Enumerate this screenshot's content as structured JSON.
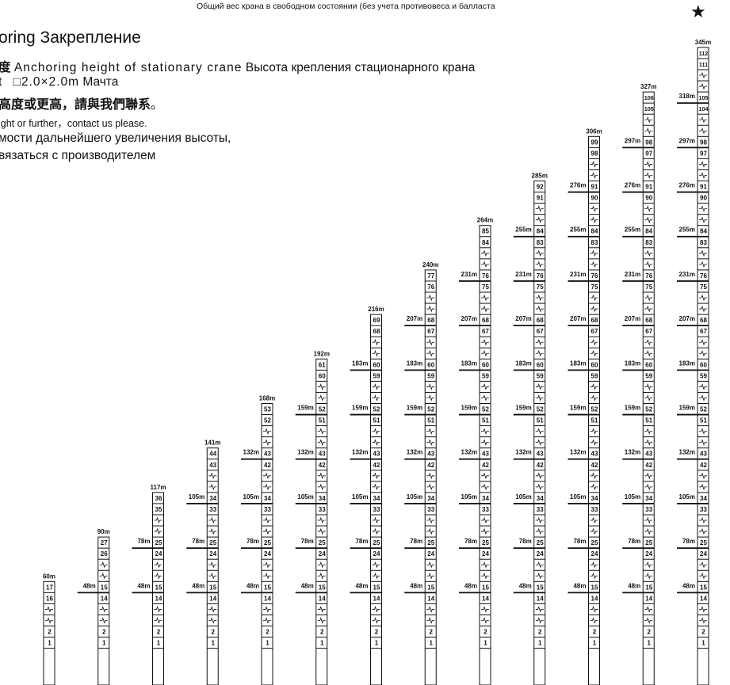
{
  "header": {
    "top_note": "Общий вес крана в свободном состоянии (без учета противовеса и балласта",
    "title_suffix": "oring",
    "title_ru": "Закрепление",
    "anchoring_zh_fragment": "度",
    "anchoring_en": "Anchoring height of stationary crane",
    "anchoring_ru": "Высота крепления стационарного крана",
    "mast_prefix": "t",
    "mast_code": "□2.0×2.0m",
    "mast_ru": "Мачта",
    "contact_zh": "高度或更高，請與我們聯系",
    "contact_zh_end": "。",
    "contact_en": "ight or further，contact us please.",
    "contact_ru_line1": "мости дальнейшего увеличения высоты,",
    "contact_ru_line2": "вязаться с производителем",
    "star_icon": "★"
  },
  "chart_data": {
    "type": "table",
    "title": "",
    "columns": [
      {
        "top_label": "60m",
        "sections": [
          "17",
          "16",
          "",
          "",
          "2",
          "1"
        ],
        "anchors": []
      },
      {
        "top_label": "90m",
        "sections": [
          "27",
          "26",
          "",
          "",
          "15",
          "14",
          "",
          "",
          "2",
          "1"
        ],
        "anchors": [
          {
            "label": "48m",
            "below": "15"
          }
        ]
      },
      {
        "top_label": "117m",
        "sections": [
          "36",
          "35",
          "",
          "",
          "25",
          "24",
          "",
          "",
          "15",
          "14",
          "",
          "",
          "2",
          "1"
        ],
        "anchors": [
          {
            "label": "78m",
            "below": "25"
          },
          {
            "label": "48m",
            "below": "15"
          }
        ]
      },
      {
        "top_label": "141m",
        "sections": [
          "44",
          "43",
          "",
          "",
          "34",
          "33",
          "",
          "",
          "25",
          "24",
          "",
          "",
          "15",
          "14",
          "",
          "",
          "2",
          "1"
        ],
        "anchors": [
          {
            "label": "105m",
            "below": "34"
          },
          {
            "label": "78m",
            "below": "25"
          },
          {
            "label": "48m",
            "below": "15"
          }
        ]
      },
      {
        "top_label": "168m",
        "sections": [
          "53",
          "52",
          "",
          "",
          "43",
          "42",
          "",
          "",
          "34",
          "33",
          "",
          "",
          "25",
          "24",
          "",
          "",
          "15",
          "14",
          "",
          "",
          "2",
          "1"
        ],
        "anchors": [
          {
            "label": "132m",
            "below": "43"
          },
          {
            "label": "105m",
            "below": "34"
          },
          {
            "label": "78m",
            "below": "25"
          },
          {
            "label": "48m",
            "below": "15"
          }
        ]
      },
      {
        "top_label": "192m",
        "sections": [
          "61",
          "60",
          "",
          "",
          "52",
          "51",
          "",
          "",
          "43",
          "42",
          "",
          "",
          "34",
          "33",
          "",
          "",
          "25",
          "24",
          "",
          "",
          "15",
          "14",
          "",
          "",
          "2",
          "1"
        ],
        "anchors": [
          {
            "label": "159m",
            "below": "52"
          },
          {
            "label": "132m",
            "below": "43"
          },
          {
            "label": "105m",
            "below": "34"
          },
          {
            "label": "78m",
            "below": "25"
          },
          {
            "label": "48m",
            "below": "15"
          }
        ]
      },
      {
        "top_label": "216m",
        "sections": [
          "69",
          "68",
          "",
          "",
          "60",
          "59",
          "",
          "",
          "52",
          "51",
          "",
          "",
          "43",
          "42",
          "",
          "",
          "34",
          "33",
          "",
          "",
          "25",
          "24",
          "",
          "",
          "15",
          "14",
          "",
          "",
          "2",
          "1"
        ],
        "anchors": [
          {
            "label": "183m",
            "below": "60"
          },
          {
            "label": "159m",
            "below": "52"
          },
          {
            "label": "132m",
            "below": "43"
          },
          {
            "label": "105m",
            "below": "34"
          },
          {
            "label": "78m",
            "below": "25"
          },
          {
            "label": "48m",
            "below": "15"
          }
        ]
      },
      {
        "top_label": "240m",
        "sections": [
          "77",
          "76",
          "",
          "",
          "68",
          "67",
          "",
          "",
          "60",
          "59",
          "",
          "",
          "52",
          "51",
          "",
          "",
          "43",
          "42",
          "",
          "",
          "34",
          "33",
          "",
          "",
          "25",
          "24",
          "",
          "",
          "15",
          "14",
          "",
          "",
          "2",
          "1"
        ],
        "anchors": [
          {
            "label": "207m",
            "below": "68"
          },
          {
            "label": "183m",
            "below": "60"
          },
          {
            "label": "159m",
            "below": "52"
          },
          {
            "label": "132m",
            "below": "43"
          },
          {
            "label": "105m",
            "below": "34"
          },
          {
            "label": "78m",
            "below": "25"
          },
          {
            "label": "48m",
            "below": "15"
          }
        ]
      },
      {
        "top_label": "264m",
        "sections": [
          "85",
          "84",
          "",
          "",
          "76",
          "75",
          "",
          "",
          "68",
          "67",
          "",
          "",
          "60",
          "59",
          "",
          "",
          "52",
          "51",
          "",
          "",
          "43",
          "42",
          "",
          "",
          "34",
          "33",
          "",
          "",
          "25",
          "24",
          "",
          "",
          "15",
          "14",
          "",
          "",
          "2",
          "1"
        ],
        "anchors": [
          {
            "label": "231m",
            "below": "76"
          },
          {
            "label": "207m",
            "below": "68"
          },
          {
            "label": "183m",
            "below": "60"
          },
          {
            "label": "159m",
            "below": "52"
          },
          {
            "label": "132m",
            "below": "43"
          },
          {
            "label": "105m",
            "below": "34"
          },
          {
            "label": "78m",
            "below": "25"
          },
          {
            "label": "48m",
            "below": "15"
          }
        ]
      },
      {
        "top_label": "285m",
        "sections": [
          "92",
          "91",
          "",
          "",
          "84",
          "83",
          "",
          "",
          "76",
          "75",
          "",
          "",
          "68",
          "67",
          "",
          "",
          "60",
          "59",
          "",
          "",
          "52",
          "51",
          "",
          "",
          "43",
          "42",
          "",
          "",
          "34",
          "33",
          "",
          "",
          "25",
          "24",
          "",
          "",
          "15",
          "14",
          "",
          "",
          "2",
          "1"
        ],
        "anchors": [
          {
            "label": "255m",
            "below": "84"
          },
          {
            "label": "231m",
            "below": "76"
          },
          {
            "label": "207m",
            "below": "68"
          },
          {
            "label": "183m",
            "below": "60"
          },
          {
            "label": "159m",
            "below": "52"
          },
          {
            "label": "132m",
            "below": "43"
          },
          {
            "label": "105m",
            "below": "34"
          },
          {
            "label": "78m",
            "below": "25"
          },
          {
            "label": "48m",
            "below": "15"
          }
        ]
      },
      {
        "top_label": "306m",
        "sections": [
          "99",
          "98",
          "",
          "",
          "91",
          "90",
          "",
          "",
          "84",
          "83",
          "",
          "",
          "76",
          "75",
          "",
          "",
          "68",
          "67",
          "",
          "",
          "60",
          "59",
          "",
          "",
          "52",
          "51",
          "",
          "",
          "43",
          "42",
          "",
          "",
          "34",
          "33",
          "",
          "",
          "25",
          "24",
          "",
          "",
          "15",
          "14",
          "",
          "",
          "2",
          "1"
        ],
        "anchors": [
          {
            "label": "276m",
            "below": "91"
          },
          {
            "label": "255m",
            "below": "84"
          },
          {
            "label": "231m",
            "below": "76"
          },
          {
            "label": "207m",
            "below": "68"
          },
          {
            "label": "183m",
            "below": "60"
          },
          {
            "label": "159m",
            "below": "52"
          },
          {
            "label": "132m",
            "below": "43"
          },
          {
            "label": "105m",
            "below": "34"
          },
          {
            "label": "78m",
            "below": "25"
          },
          {
            "label": "48m",
            "below": "15"
          }
        ]
      },
      {
        "top_label": "327m",
        "sections": [
          "106",
          "105",
          "",
          "",
          "98",
          "97",
          "",
          "",
          "91",
          "90",
          "",
          "",
          "84",
          "83",
          "",
          "",
          "76",
          "75",
          "",
          "",
          "68",
          "67",
          "",
          "",
          "60",
          "59",
          "",
          "",
          "52",
          "51",
          "",
          "",
          "43",
          "42",
          "",
          "",
          "34",
          "33",
          "",
          "",
          "25",
          "24",
          "",
          "",
          "15",
          "14",
          "",
          "",
          "2",
          "1"
        ],
        "anchors": [
          {
            "label": "297m",
            "below": "98"
          },
          {
            "label": "276m",
            "below": "91"
          },
          {
            "label": "255m",
            "below": "84"
          },
          {
            "label": "231m",
            "below": "76"
          },
          {
            "label": "207m",
            "below": "68"
          },
          {
            "label": "183m",
            "below": "60"
          },
          {
            "label": "159m",
            "below": "52"
          },
          {
            "label": "132m",
            "below": "43"
          },
          {
            "label": "105m",
            "below": "34"
          },
          {
            "label": "78m",
            "below": "25"
          },
          {
            "label": "48m",
            "below": "15"
          }
        ]
      },
      {
        "top_label": "345m",
        "sections": [
          "112",
          "111",
          "",
          "",
          "105",
          "104",
          "",
          "",
          "98",
          "97",
          "",
          "",
          "91",
          "90",
          "",
          "",
          "84",
          "83",
          "",
          "",
          "76",
          "75",
          "",
          "",
          "68",
          "67",
          "",
          "",
          "60",
          "59",
          "",
          "",
          "52",
          "51",
          "",
          "",
          "43",
          "42",
          "",
          "",
          "34",
          "33",
          "",
          "",
          "25",
          "24",
          "",
          "",
          "15",
          "14",
          "",
          "",
          "2",
          "1"
        ],
        "anchors": [
          {
            "label": "318m",
            "below": "105"
          },
          {
            "label": "297m",
            "below": "98"
          },
          {
            "label": "276m",
            "below": "91"
          },
          {
            "label": "255m",
            "below": "84"
          },
          {
            "label": "231m",
            "below": "76"
          },
          {
            "label": "207m",
            "below": "68"
          },
          {
            "label": "183m",
            "below": "60"
          },
          {
            "label": "159m",
            "below": "52"
          },
          {
            "label": "132m",
            "below": "43"
          },
          {
            "label": "105m",
            "below": "34"
          },
          {
            "label": "78m",
            "below": "25"
          },
          {
            "label": "48m",
            "below": "15"
          }
        ]
      }
    ]
  }
}
